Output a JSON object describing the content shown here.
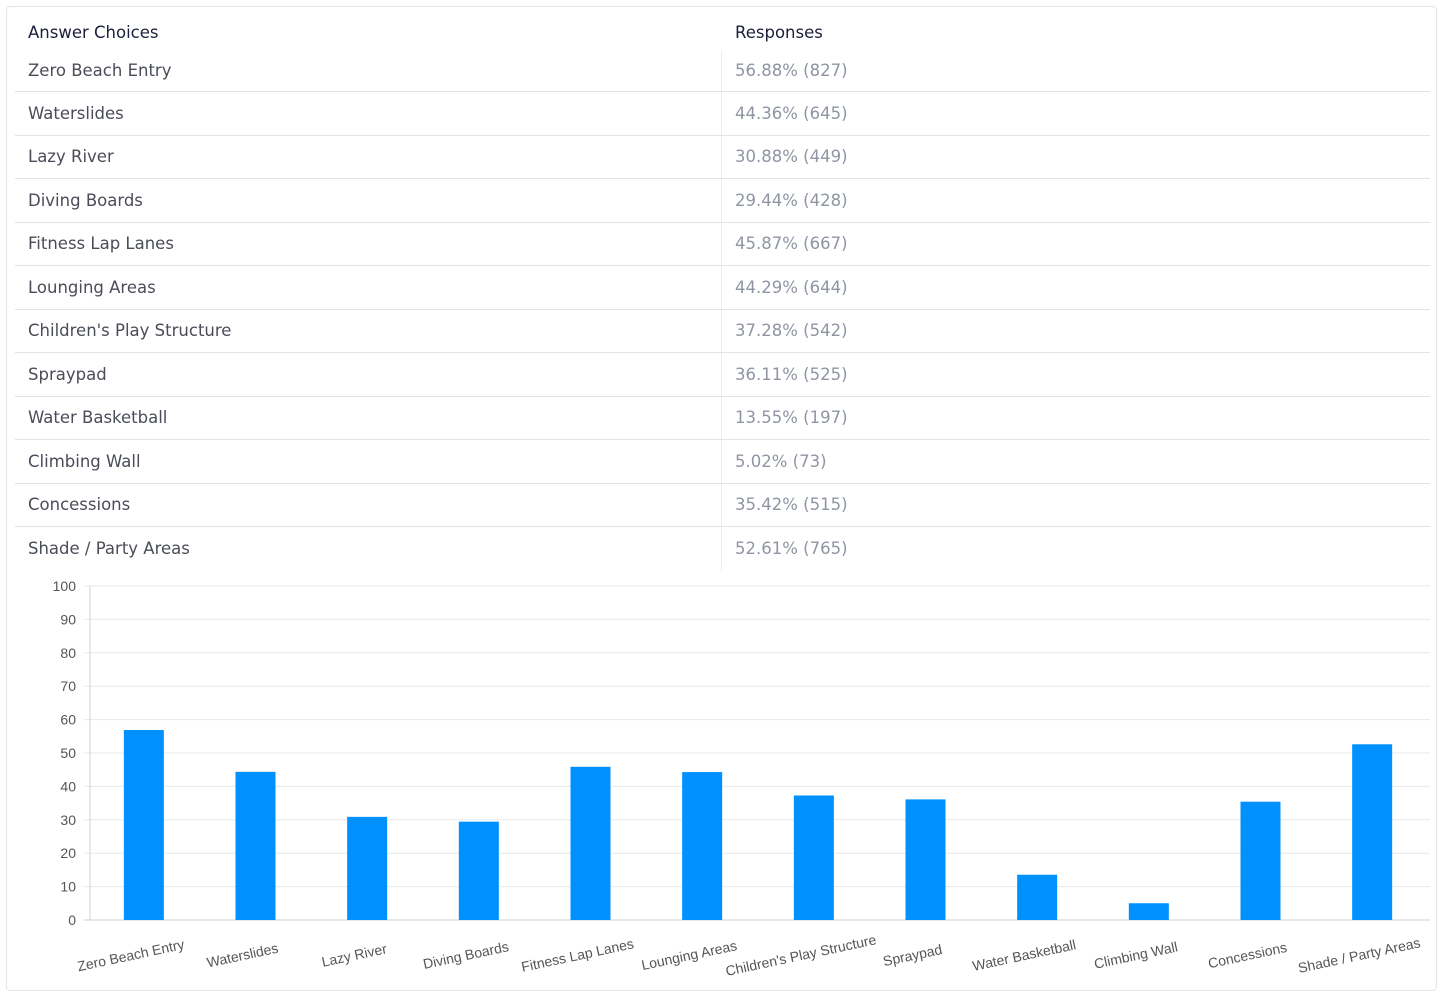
{
  "table": {
    "headers": {
      "choices": "Answer Choices",
      "responses": "Responses"
    },
    "rows": [
      {
        "choice": "Zero Beach Entry",
        "response": "56.88% (827)"
      },
      {
        "choice": "Waterslides",
        "response": "44.36% (645)"
      },
      {
        "choice": "Lazy River",
        "response": "30.88% (449)"
      },
      {
        "choice": "Diving Boards",
        "response": "29.44% (428)"
      },
      {
        "choice": "Fitness Lap Lanes",
        "response": "45.87% (667)"
      },
      {
        "choice": "Lounging Areas",
        "response": "44.29% (644)"
      },
      {
        "choice": "Children's Play Structure",
        "response": "37.28% (542)"
      },
      {
        "choice": "Spraypad",
        "response": "36.11% (525)"
      },
      {
        "choice": "Water Basketball",
        "response": "13.55% (197)"
      },
      {
        "choice": "Climbing Wall",
        "response": "5.02% (73)"
      },
      {
        "choice": "Concessions",
        "response": "35.42% (515)"
      },
      {
        "choice": "Shade / Party Areas",
        "response": "52.61% (765)"
      }
    ]
  },
  "chart_data": {
    "type": "bar",
    "categories": [
      "Zero Beach Entry",
      "Waterslides",
      "Lazy River",
      "Diving Boards",
      "Fitness Lap Lanes",
      "Lounging Areas",
      "Children's Play Structure",
      "Spraypad",
      "Water Basketball",
      "Climbing Wall",
      "Concessions",
      "Shade / Party Areas"
    ],
    "values": [
      56.88,
      44.36,
      30.88,
      29.44,
      45.87,
      44.29,
      37.28,
      36.11,
      13.55,
      5.02,
      35.42,
      52.61
    ],
    "ylim": [
      0,
      100
    ],
    "yticks": [
      0,
      10,
      20,
      30,
      40,
      50,
      60,
      70,
      80,
      90,
      100
    ],
    "title": "",
    "xlabel": "",
    "ylabel": "",
    "grid": true,
    "bar_color": "#0091ff"
  }
}
